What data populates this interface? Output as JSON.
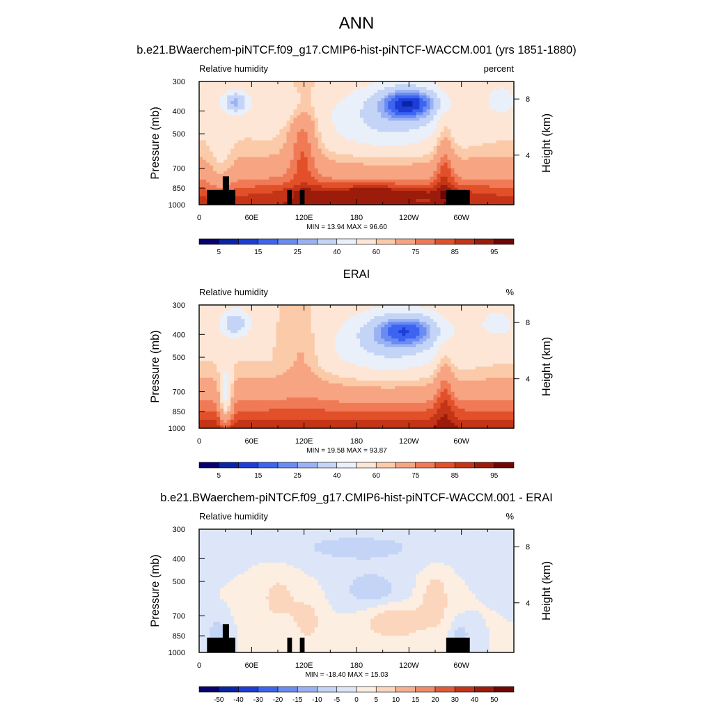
{
  "main_title": "ANN",
  "chart_data": [
    {
      "type": "heatmap",
      "title": "b.e21.BWaerchem-piNTCF.f09_g17.CMIP6-hist-piNTCF-WACCM.001 (yrs 1851-1880)",
      "left_string": "Relative humidity",
      "right_string": "percent",
      "ylabel": "Pressure (mb)",
      "ylabel_right": "Height (km)",
      "xlim": [
        0,
        360
      ],
      "x_ticks": [
        "0",
        "60E",
        "120E",
        "180",
        "120W",
        "60W"
      ],
      "y_ticks": [
        "300",
        "400",
        "500",
        "700",
        "850",
        "1000"
      ],
      "y_ticks_right": [
        "8",
        "4"
      ],
      "stats": "MIN = 13.94  MAX = 96.60",
      "min": 13.94,
      "max": 96.6,
      "colorbar_labels": [
        "5",
        "15",
        "25",
        "40",
        "60",
        "75",
        "85",
        "95"
      ]
    },
    {
      "type": "heatmap",
      "title": "ERAI",
      "left_string": "Relative humidity",
      "right_string": "%",
      "ylabel": "Pressure (mb)",
      "ylabel_right": "Height (km)",
      "xlim": [
        0,
        360
      ],
      "x_ticks": [
        "0",
        "60E",
        "120E",
        "180",
        "120W",
        "60W"
      ],
      "y_ticks": [
        "300",
        "400",
        "500",
        "700",
        "850",
        "1000"
      ],
      "y_ticks_right": [
        "8",
        "4"
      ],
      "stats": "MIN = 19.58  MAX = 93.87",
      "min": 19.58,
      "max": 93.87,
      "colorbar_labels": [
        "5",
        "15",
        "25",
        "40",
        "60",
        "75",
        "85",
        "95"
      ]
    },
    {
      "type": "heatmap",
      "title": "b.e21.BWaerchem-piNTCF.f09_g17.CMIP6-hist-piNTCF-WACCM.001 - ERAI",
      "left_string": "Relative humidity",
      "right_string": "%",
      "ylabel": "Pressure (mb)",
      "ylabel_right": "Height (km)",
      "xlim": [
        0,
        360
      ],
      "x_ticks": [
        "0",
        "60E",
        "120E",
        "180",
        "120W",
        "60W"
      ],
      "y_ticks": [
        "300",
        "400",
        "500",
        "700",
        "850",
        "1000"
      ],
      "y_ticks_right": [
        "8",
        "4"
      ],
      "stats": "MIN = -18.40  MAX = 15.03",
      "min": -18.4,
      "max": 15.03,
      "colorbar_labels": [
        "-50",
        "-40",
        "-30",
        "-20",
        "-15",
        "-10",
        "-5",
        "0",
        "5",
        "10",
        "15",
        "20",
        "30",
        "40",
        "50"
      ]
    }
  ],
  "colors": {
    "palette_16": [
      "#08006e",
      "#0a24a8",
      "#1e3dd6",
      "#3c64f0",
      "#6a8cf2",
      "#9ab2f4",
      "#c4d4f6",
      "#eaf0fa",
      "#fde6d6",
      "#fbcaa8",
      "#f6a482",
      "#f07a56",
      "#e2502a",
      "#c43416",
      "#9c1c0c",
      "#6e0606"
    ],
    "palette_diff": [
      "#08006e",
      "#0a24a8",
      "#1e3dd6",
      "#3c64f0",
      "#6a8cf2",
      "#9ab2f4",
      "#c4d4f6",
      "#dce6f8",
      "#fdeee2",
      "#fbd6bc",
      "#f6b08e",
      "#f08a68",
      "#e25a36",
      "#c43416",
      "#9c1c0c",
      "#6e0606"
    ]
  }
}
